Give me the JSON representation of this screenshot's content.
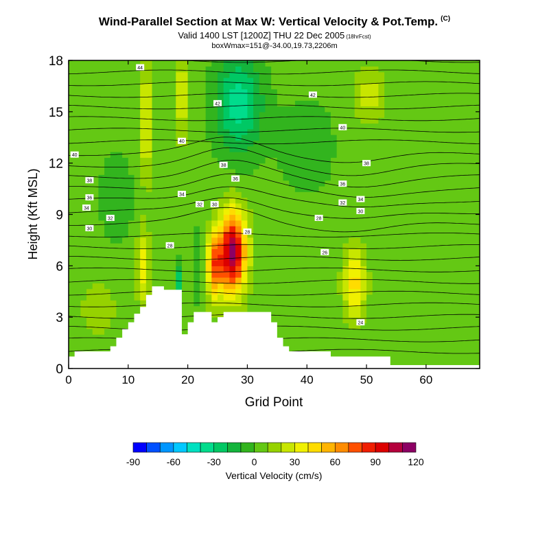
{
  "header": {
    "title": "Wind-Parallel Section at Max W: Vertical Velocity & Pot.Temp.",
    "title_tag": "(C)",
    "valid": "Valid 1400 LST [1200Z] THU 22 Dec 2005",
    "forecast": "(18hrFcst)",
    "box_info": "boxWmax=151@-34.00,19.73,2206m"
  },
  "chart_data": {
    "type": "heatmap",
    "xlabel": "Grid Point",
    "ylabel": "Height (Kft MSL)",
    "xlim": [
      0,
      69
    ],
    "ylim": [
      0,
      18
    ],
    "xticks": [
      0,
      10,
      20,
      30,
      40,
      50,
      60
    ],
    "yticks": [
      0,
      3,
      6,
      9,
      12,
      15,
      18
    ],
    "colorbar": {
      "label": "Vertical Velocity (cm/s)",
      "ticks": [
        -90,
        -60,
        -30,
        0,
        30,
        60,
        90,
        120
      ],
      "bins": [
        -90,
        -80,
        -70,
        -60,
        -50,
        -40,
        -30,
        -20,
        -10,
        0,
        10,
        20,
        30,
        40,
        50,
        60,
        70,
        80,
        90,
        100,
        110,
        120
      ],
      "colors": [
        "#0000ff",
        "#0050ff",
        "#0096ff",
        "#00c8ff",
        "#00e0c0",
        "#00dc8c",
        "#00c864",
        "#14b43c",
        "#32b41e",
        "#64c814",
        "#96d200",
        "#c8e600",
        "#f0f000",
        "#ffdc00",
        "#ffb400",
        "#ff8c00",
        "#ff5000",
        "#f01e00",
        "#dc0000",
        "#b4003c",
        "#8c0064"
      ]
    },
    "velocity_background": 5,
    "velocity_features": [
      {
        "x": 27.5,
        "y": 6.8,
        "sx": 2.2,
        "sy": 2.3,
        "amp": 110
      },
      {
        "x": 24.5,
        "y": 6.0,
        "sx": 1.3,
        "sy": 1.8,
        "amp": 60
      },
      {
        "x": 13.0,
        "y": 14.5,
        "sx": 0.9,
        "sy": 3.5,
        "amp": 30
      },
      {
        "x": 12.5,
        "y": 6.0,
        "sx": 1.0,
        "sy": 2.0,
        "amp": 35
      },
      {
        "x": 48.0,
        "y": 5.0,
        "sx": 1.8,
        "sy": 2.0,
        "amp": 40
      },
      {
        "x": 19.0,
        "y": 16.0,
        "sx": 0.8,
        "sy": 2.5,
        "amp": 30
      },
      {
        "x": 50.5,
        "y": 16.0,
        "sx": 2.5,
        "sy": 1.5,
        "amp": 20
      },
      {
        "x": 5.0,
        "y": 3.5,
        "sx": 2.5,
        "sy": 1.5,
        "amp": 15
      },
      {
        "x": 28.5,
        "y": 15.5,
        "sx": 4.0,
        "sy": 3.0,
        "amp": -40
      },
      {
        "x": 18.5,
        "y": 5.0,
        "sx": 0.6,
        "sy": 1.2,
        "amp": -35
      },
      {
        "x": 22.0,
        "y": 6.0,
        "sx": 0.5,
        "sy": 3.0,
        "amp": -25
      },
      {
        "x": 8.0,
        "y": 10.0,
        "sx": 3.0,
        "sy": 3.0,
        "amp": -12
      },
      {
        "x": 40.0,
        "y": 13.0,
        "sx": 5.0,
        "sy": 3.0,
        "amp": -12
      }
    ],
    "theta_contour_labels": [
      {
        "x": 12.0,
        "y": 17.6,
        "text": "44"
      },
      {
        "x": 25.0,
        "y": 15.5,
        "text": "42"
      },
      {
        "x": 41.0,
        "y": 16.0,
        "text": "42"
      },
      {
        "x": 19.0,
        "y": 13.3,
        "text": "40"
      },
      {
        "x": 46.0,
        "y": 14.1,
        "text": "40"
      },
      {
        "x": 1.0,
        "y": 12.5,
        "text": "40"
      },
      {
        "x": 26.0,
        "y": 11.9,
        "text": "38"
      },
      {
        "x": 50.0,
        "y": 12.0,
        "text": "38"
      },
      {
        "x": 3.5,
        "y": 11.0,
        "text": "38"
      },
      {
        "x": 28.0,
        "y": 11.1,
        "text": "36"
      },
      {
        "x": 46.0,
        "y": 10.8,
        "text": "36"
      },
      {
        "x": 3.5,
        "y": 10.0,
        "text": "36"
      },
      {
        "x": 19.0,
        "y": 10.2,
        "text": "34"
      },
      {
        "x": 3.0,
        "y": 9.4,
        "text": "34"
      },
      {
        "x": 49.0,
        "y": 9.9,
        "text": "34"
      },
      {
        "x": 22.0,
        "y": 9.6,
        "text": "32"
      },
      {
        "x": 46.0,
        "y": 9.7,
        "text": "32"
      },
      {
        "x": 24.5,
        "y": 9.6,
        "text": "30"
      },
      {
        "x": 49.0,
        "y": 9.2,
        "text": "30"
      },
      {
        "x": 3.5,
        "y": 8.2,
        "text": "30"
      },
      {
        "x": 7.0,
        "y": 8.8,
        "text": "32"
      },
      {
        "x": 42.0,
        "y": 8.8,
        "text": "28"
      },
      {
        "x": 30.0,
        "y": 8.0,
        "text": "28"
      },
      {
        "x": 17.0,
        "y": 7.2,
        "text": "28"
      },
      {
        "x": 43.0,
        "y": 6.8,
        "text": "26"
      },
      {
        "x": 49.0,
        "y": 2.7,
        "text": "24"
      }
    ],
    "terrain": [
      [
        0,
        0.7
      ],
      [
        1,
        1.0
      ],
      [
        2,
        1.0
      ],
      [
        3,
        1.0
      ],
      [
        4,
        1.0
      ],
      [
        5,
        1.0
      ],
      [
        6,
        1.0
      ],
      [
        7,
        1.3
      ],
      [
        8,
        1.8
      ],
      [
        9,
        2.3
      ],
      [
        10,
        2.7
      ],
      [
        11,
        3.2
      ],
      [
        12,
        3.6
      ],
      [
        13,
        4.3
      ],
      [
        14,
        4.8
      ],
      [
        15,
        4.8
      ],
      [
        16,
        4.6
      ],
      [
        17,
        4.6
      ],
      [
        18,
        4.6
      ],
      [
        19,
        2.0
      ],
      [
        20,
        2.7
      ],
      [
        21,
        3.3
      ],
      [
        22,
        3.3
      ],
      [
        23,
        3.3
      ],
      [
        24,
        2.7
      ],
      [
        25,
        3.0
      ],
      [
        26,
        3.3
      ],
      [
        27,
        3.3
      ],
      [
        28,
        3.3
      ],
      [
        29,
        3.3
      ],
      [
        30,
        3.3
      ],
      [
        31,
        3.3
      ],
      [
        32,
        3.3
      ],
      [
        33,
        3.3
      ],
      [
        34,
        2.7
      ],
      [
        35,
        1.8
      ],
      [
        36,
        1.3
      ],
      [
        37,
        1.0
      ],
      [
        38,
        1.0
      ],
      [
        39,
        1.0
      ],
      [
        40,
        1.0
      ],
      [
        41,
        1.0
      ],
      [
        42,
        1.0
      ],
      [
        43,
        1.0
      ],
      [
        44,
        0.7
      ],
      [
        45,
        0.7
      ],
      [
        46,
        0.7
      ],
      [
        47,
        0.7
      ],
      [
        48,
        0.7
      ],
      [
        49,
        0.7
      ],
      [
        50,
        0.7
      ],
      [
        51,
        0.7
      ],
      [
        52,
        0.7
      ],
      [
        53,
        0.7
      ],
      [
        54,
        0.2
      ],
      [
        55,
        0.2
      ],
      [
        56,
        0.2
      ],
      [
        57,
        0.2
      ],
      [
        58,
        0.2
      ],
      [
        59,
        0.2
      ],
      [
        60,
        0.2
      ],
      [
        61,
        0.2
      ],
      [
        62,
        0.2
      ],
      [
        63,
        0.2
      ],
      [
        64,
        0.2
      ],
      [
        65,
        0.2
      ],
      [
        66,
        0.2
      ],
      [
        67,
        0.2
      ],
      [
        68,
        0.2
      ],
      [
        69,
        0.2
      ]
    ]
  }
}
